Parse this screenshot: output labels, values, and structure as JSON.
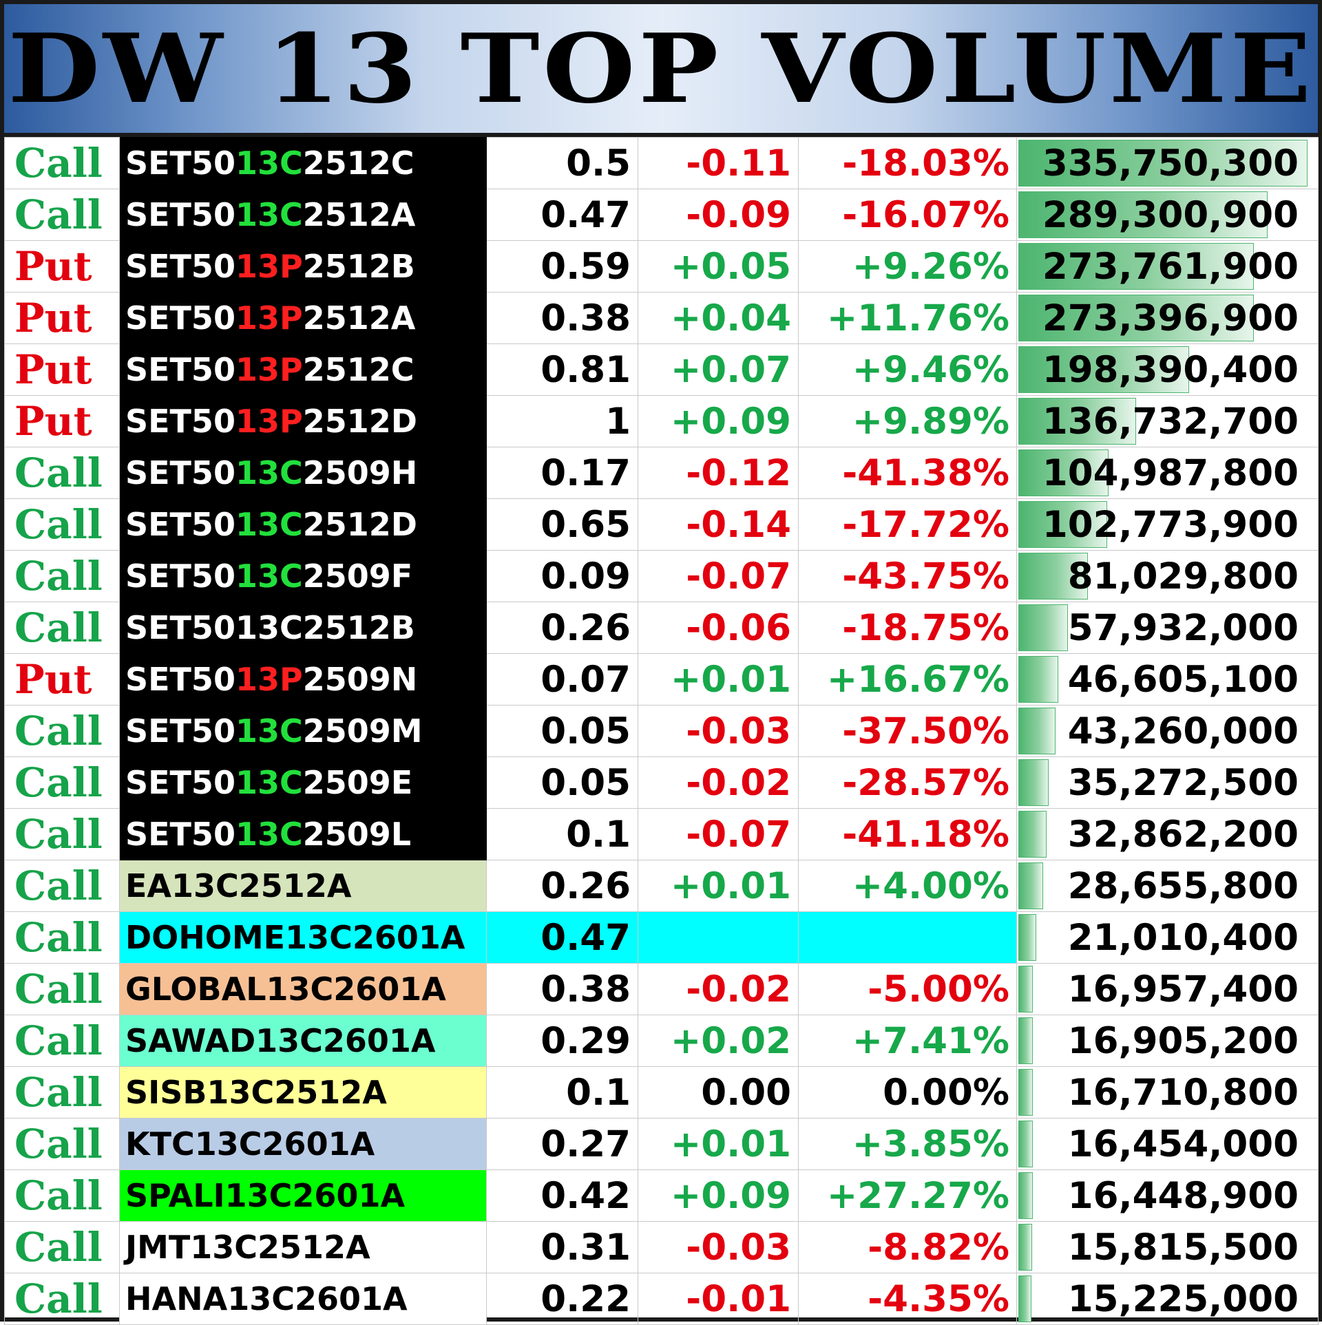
{
  "title": "DW 13 TOP VOLUME",
  "max_volume": 335750300,
  "rows": [
    {
      "type": "Call",
      "prefix": "SET50",
      "seg": "13C",
      "suffix": "2512C",
      "price": "0.5",
      "change": "-0.11",
      "pct": "-18.03%",
      "volume": "335,750,300",
      "volume_value": 335750300,
      "style": "dark",
      "highlight": true
    },
    {
      "type": "Call",
      "prefix": "SET50",
      "seg": "13C",
      "suffix": "2512A",
      "price": "0.47",
      "change": "-0.09",
      "pct": "-16.07%",
      "volume": "289,300,900",
      "volume_value": 289300900,
      "style": "dark",
      "highlight": true
    },
    {
      "type": "Put",
      "prefix": "SET50",
      "seg": "13P",
      "suffix": "2512B",
      "price": "0.59",
      "change": "+0.05",
      "pct": "+9.26%",
      "volume": "273,761,900",
      "volume_value": 273761900,
      "style": "dark",
      "highlight": true
    },
    {
      "type": "Put",
      "prefix": "SET50",
      "seg": "13P",
      "suffix": "2512A",
      "price": "0.38",
      "change": "+0.04",
      "pct": "+11.76%",
      "volume": "273,396,900",
      "volume_value": 273396900,
      "style": "dark",
      "highlight": true
    },
    {
      "type": "Put",
      "prefix": "SET50",
      "seg": "13P",
      "suffix": "2512C",
      "price": "0.81",
      "change": "+0.07",
      "pct": "+9.46%",
      "volume": "198,390,400",
      "volume_value": 198390400,
      "style": "dark",
      "highlight": true
    },
    {
      "type": "Put",
      "prefix": "SET50",
      "seg": "13P",
      "suffix": "2512D",
      "price": "1",
      "change": "+0.09",
      "pct": "+9.89%",
      "volume": "136,732,700",
      "volume_value": 136732700,
      "style": "dark",
      "highlight": true
    },
    {
      "type": "Call",
      "prefix": "SET50",
      "seg": "13C",
      "suffix": "2509H",
      "price": "0.17",
      "change": "-0.12",
      "pct": "-41.38%",
      "volume": "104,987,800",
      "volume_value": 104987800,
      "style": "dark",
      "highlight": true
    },
    {
      "type": "Call",
      "prefix": "SET50",
      "seg": "13C",
      "suffix": "2512D",
      "price": "0.65",
      "change": "-0.14",
      "pct": "-17.72%",
      "volume": "102,773,900",
      "volume_value": 102773900,
      "style": "dark",
      "highlight": true
    },
    {
      "type": "Call",
      "prefix": "SET50",
      "seg": "13C",
      "suffix": "2509F",
      "price": "0.09",
      "change": "-0.07",
      "pct": "-43.75%",
      "volume": "81,029,800",
      "volume_value": 81029800,
      "style": "dark",
      "highlight": true
    },
    {
      "type": "Call",
      "prefix": "SET50",
      "seg": "13C",
      "suffix": "2512B",
      "price": "0.26",
      "change": "-0.06",
      "pct": "-18.75%",
      "volume": "57,932,000",
      "volume_value": 57932000,
      "style": "dark",
      "highlight": false
    },
    {
      "type": "Put",
      "prefix": "SET50",
      "seg": "13P",
      "suffix": "2509N",
      "price": "0.07",
      "change": "+0.01",
      "pct": "+16.67%",
      "volume": "46,605,100",
      "volume_value": 46605100,
      "style": "dark",
      "highlight": true
    },
    {
      "type": "Call",
      "prefix": "SET50",
      "seg": "13C",
      "suffix": "2509M",
      "price": "0.05",
      "change": "-0.03",
      "pct": "-37.50%",
      "volume": "43,260,000",
      "volume_value": 43260000,
      "style": "dark",
      "highlight": true
    },
    {
      "type": "Call",
      "prefix": "SET50",
      "seg": "13C",
      "suffix": "2509E",
      "price": "0.05",
      "change": "-0.02",
      "pct": "-28.57%",
      "volume": "35,272,500",
      "volume_value": 35272500,
      "style": "dark",
      "highlight": true
    },
    {
      "type": "Call",
      "prefix": "SET50",
      "seg": "13C",
      "suffix": "2509L",
      "price": "0.1",
      "change": "-0.07",
      "pct": "-41.18%",
      "volume": "32,862,200",
      "volume_value": 32862200,
      "style": "dark",
      "highlight": true
    },
    {
      "type": "Call",
      "prefix": "EA13C2512A",
      "seg": "",
      "suffix": "",
      "price": "0.26",
      "change": "+0.01",
      "pct": "+4.00%",
      "volume": "28,655,800",
      "volume_value": 28655800,
      "style": "color",
      "bg": "#d6e4bc",
      "highlight": false
    },
    {
      "type": "Call",
      "prefix": "DOHOME13C2601A",
      "seg": "",
      "suffix": "",
      "price": "0.47",
      "change": "",
      "pct": "",
      "volume": "21,010,400",
      "volume_value": 21010400,
      "style": "cyan",
      "bg": "#00ffff",
      "highlight": false
    },
    {
      "type": "Call",
      "prefix": "GLOBAL13C2601A",
      "seg": "",
      "suffix": "",
      "price": "0.38",
      "change": "-0.02",
      "pct": "-5.00%",
      "volume": "16,957,400",
      "volume_value": 16957400,
      "style": "color",
      "bg": "#f7c094",
      "highlight": false
    },
    {
      "type": "Call",
      "prefix": "SAWAD13C2601A",
      "seg": "",
      "suffix": "",
      "price": "0.29",
      "change": "+0.02",
      "pct": "+7.41%",
      "volume": "16,905,200",
      "volume_value": 16905200,
      "style": "color",
      "bg": "#6bffcf",
      "highlight": false
    },
    {
      "type": "Call",
      "prefix": "SISB13C2512A",
      "seg": "",
      "suffix": "",
      "price": "0.1",
      "change": "0.00",
      "pct": "0.00%",
      "volume": "16,710,800",
      "volume_value": 16710800,
      "style": "color",
      "bg": "#ffff99",
      "highlight": false
    },
    {
      "type": "Call",
      "prefix": "KTC13C2601A",
      "seg": "",
      "suffix": "",
      "price": "0.27",
      "change": "+0.01",
      "pct": "+3.85%",
      "volume": "16,454,000",
      "volume_value": 16454000,
      "style": "color",
      "bg": "#b9cce6",
      "highlight": false
    },
    {
      "type": "Call",
      "prefix": "SPALI13C2601A",
      "seg": "",
      "suffix": "",
      "price": "0.42",
      "change": "+0.09",
      "pct": "+27.27%",
      "volume": "16,448,900",
      "volume_value": 16448900,
      "style": "color",
      "bg": "#00ff00",
      "highlight": false
    },
    {
      "type": "Call",
      "prefix": "JMT13C2512A",
      "seg": "",
      "suffix": "",
      "price": "0.31",
      "change": "-0.03",
      "pct": "-8.82%",
      "volume": "15,815,500",
      "volume_value": 15815500,
      "style": "color",
      "bg": "#ffffff",
      "highlight": false
    },
    {
      "type": "Call",
      "prefix": "HANA13C2601A",
      "seg": "",
      "suffix": "",
      "price": "0.22",
      "change": "-0.01",
      "pct": "-4.35%",
      "volume": "15,225,000",
      "volume_value": 15225000,
      "style": "color",
      "bg": "#ffffff",
      "highlight": false
    }
  ]
}
